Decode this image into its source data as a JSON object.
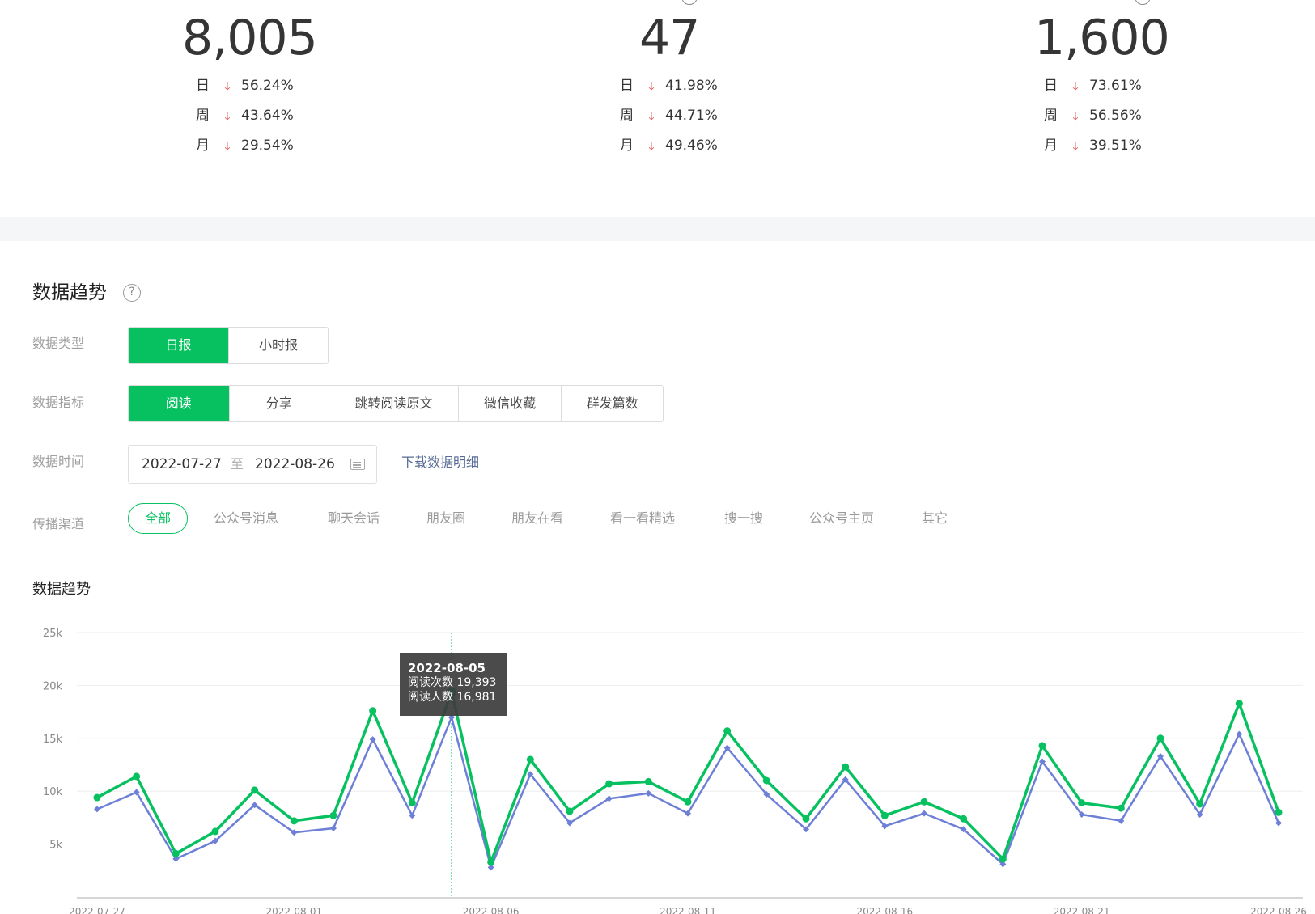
{
  "stats": [
    {
      "value": "8,005",
      "rows": [
        {
          "period": "日",
          "pct": "56.24%"
        },
        {
          "period": "周",
          "pct": "43.64%"
        },
        {
          "period": "月",
          "pct": "29.54%"
        }
      ]
    },
    {
      "value": "47",
      "rows": [
        {
          "period": "日",
          "pct": "41.98%"
        },
        {
          "period": "周",
          "pct": "44.71%"
        },
        {
          "period": "月",
          "pct": "49.46%"
        }
      ]
    },
    {
      "value": "1,600",
      "rows": [
        {
          "period": "日",
          "pct": "73.61%"
        },
        {
          "period": "周",
          "pct": "56.56%"
        },
        {
          "period": "月",
          "pct": "39.51%"
        }
      ]
    }
  ],
  "arrow_icon": "down-arrow-icon",
  "trend_section": {
    "title": "数据趋势",
    "help_icon": "question-circle-icon",
    "data_type": {
      "label": "数据类型",
      "options": [
        "日报",
        "小时报"
      ],
      "selected": "日报"
    },
    "data_metric": {
      "label": "数据指标",
      "options": [
        "阅读",
        "分享",
        "跳转阅读原文",
        "微信收藏",
        "群发篇数"
      ],
      "selected": "阅读"
    },
    "data_time": {
      "label": "数据时间",
      "start": "2022-07-27",
      "separator": "至",
      "end": "2022-08-26",
      "download": "下载数据明细"
    },
    "channel": {
      "label": "传播渠道",
      "options": [
        "全部",
        "公众号消息",
        "聊天会话",
        "朋友圈",
        "朋友在看",
        "看一看精选",
        "搜一搜",
        "公众号主页",
        "其它"
      ],
      "selected": "全部"
    },
    "chart_title": "数据趋势"
  },
  "tooltip": {
    "date": "2022-08-05",
    "line1": "阅读次数 19,393",
    "line2": "阅读人数 16,981"
  },
  "colors": {
    "accent": "#07c160",
    "secondary": "#6d7fd6",
    "down": "#e34a4a",
    "link": "#576b95"
  },
  "chart_data": {
    "type": "line",
    "x": [
      "2022-07-27",
      "2022-07-28",
      "2022-07-29",
      "2022-07-30",
      "2022-07-31",
      "2022-08-01",
      "2022-08-02",
      "2022-08-03",
      "2022-08-04",
      "2022-08-05",
      "2022-08-06",
      "2022-08-07",
      "2022-08-08",
      "2022-08-09",
      "2022-08-10",
      "2022-08-11",
      "2022-08-12",
      "2022-08-13",
      "2022-08-14",
      "2022-08-15",
      "2022-08-16",
      "2022-08-17",
      "2022-08-18",
      "2022-08-19",
      "2022-08-20",
      "2022-08-21",
      "2022-08-22",
      "2022-08-23",
      "2022-08-24",
      "2022-08-25",
      "2022-08-26"
    ],
    "x_tick_labels": [
      "2022-07-27",
      "2022-08-01",
      "2022-08-06",
      "2022-08-11",
      "2022-08-16",
      "2022-08-21",
      "2022-08-26"
    ],
    "series": [
      {
        "name": "阅读次数",
        "color": "#07c160",
        "values": [
          9400,
          11400,
          4100,
          6200,
          10100,
          7200,
          7700,
          17600,
          8900,
          19393,
          3300,
          13000,
          8100,
          10700,
          10900,
          9000,
          15700,
          11000,
          7400,
          12300,
          7700,
          9000,
          7400,
          3600,
          14300,
          8900,
          8400,
          15000,
          8800,
          18300,
          8000
        ]
      },
      {
        "name": "阅读人数",
        "color": "#6d7fd6",
        "values": [
          8300,
          9900,
          3600,
          5300,
          8700,
          6100,
          6500,
          14900,
          7700,
          16981,
          2800,
          11600,
          7000,
          9300,
          9800,
          7900,
          14100,
          9700,
          6400,
          11100,
          6700,
          7900,
          6400,
          3100,
          12800,
          7800,
          7200,
          13300,
          7800,
          15400,
          7000
        ]
      }
    ],
    "yticks": [
      "25k",
      "20k",
      "15k",
      "10k",
      "5k"
    ],
    "ylim": [
      0,
      25000
    ],
    "highlight_index": 9,
    "grid": true
  }
}
